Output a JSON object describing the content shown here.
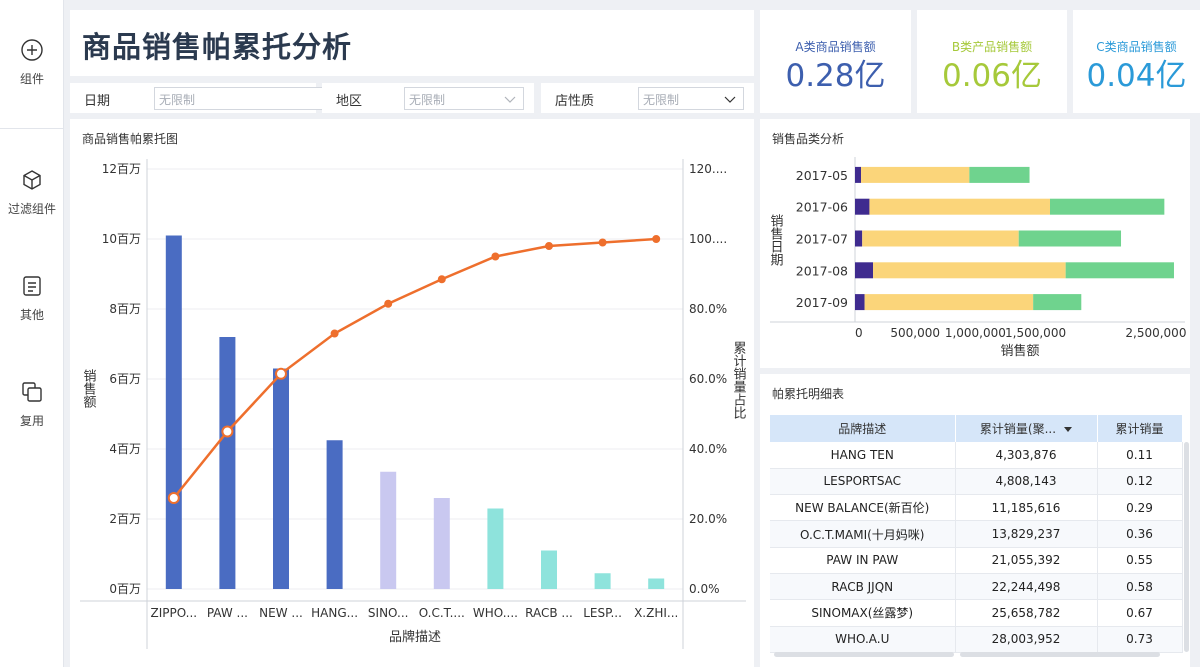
{
  "sidebar": {
    "items": [
      {
        "label": "组件",
        "icon": "plus-circle-icon"
      },
      {
        "label": "过滤组件",
        "icon": "cube-icon"
      },
      {
        "label": "其他",
        "icon": "document-icon"
      },
      {
        "label": "复用",
        "icon": "copy-icon"
      }
    ]
  },
  "header": {
    "title": "商品销售帕累托分析"
  },
  "kpis": [
    {
      "label": "A类商品销售额",
      "value": "0.28亿",
      "color": "#3d5fae"
    },
    {
      "label": "B类产品销售额",
      "value": "0.06亿",
      "color": "#a6c93a"
    },
    {
      "label": "C类商品销售额",
      "value": "0.04亿",
      "color": "#2b9ad8"
    }
  ],
  "filters": [
    {
      "label": "日期",
      "placeholder": "无限制",
      "icon": "calendar-icon"
    },
    {
      "label": "地区",
      "placeholder": "无限制",
      "icon": "chevron-down-icon"
    },
    {
      "label": "店性质",
      "placeholder": "无限制",
      "icon": "chevron-down-icon"
    }
  ],
  "pareto": {
    "title": "商品销售帕累托图",
    "colors": {
      "bar_a": "#4a6cc2",
      "bar_b": "#c9c8f0",
      "bar_c": "#8ee3dc",
      "line": "#ee6f2d"
    }
  },
  "category": {
    "title": "销售品类分析"
  },
  "table": {
    "title": "帕累托明细表",
    "headers": [
      "品牌描述",
      "累计销量(聚...",
      "累计销量"
    ],
    "rows": [
      [
        "HANG TEN",
        "4,303,876",
        "0.11"
      ],
      [
        "LESPORTSAC",
        "4,808,143",
        "0.12"
      ],
      [
        "NEW BALANCE(新百伦)",
        "11,185,616",
        "0.29"
      ],
      [
        "O.C.T.MAMI(十月妈咪)",
        "13,829,237",
        "0.36"
      ],
      [
        "PAW IN PAW",
        "21,055,392",
        "0.55"
      ],
      [
        "RACB JJQN",
        "22,244,498",
        "0.58"
      ],
      [
        "SINOMAX(丝露梦)",
        "25,658,782",
        "0.67"
      ],
      [
        "WHO.A.U",
        "28,003,952",
        "0.73"
      ]
    ]
  },
  "chart_data": [
    {
      "type": "bar",
      "title": "商品销售帕累托图",
      "xlabel": "品牌描述",
      "ylabel": "销售额",
      "y2label": "累计销量占比",
      "categories": [
        "ZIPPO...",
        "PAW ...",
        "NEW ...",
        "HANG...",
        "SINO...",
        "O.C.T....",
        "WHO....",
        "RACB ...",
        "LESP...",
        "X.ZHI..."
      ],
      "y_ticks": [
        "0百万",
        "2百万",
        "4百万",
        "6百万",
        "8百万",
        "10百万",
        "12百万"
      ],
      "y2_ticks": [
        "0.0%",
        "20.0%",
        "40.0%",
        "60.0%",
        "80.0%",
        "100....",
        "120...."
      ],
      "ylim": [
        0,
        12
      ],
      "y2lim": [
        0,
        120
      ],
      "classes": [
        "A",
        "A",
        "A",
        "A",
        "B",
        "B",
        "C",
        "C",
        "C",
        "C"
      ],
      "series": [
        {
          "kind": "bar",
          "values": [
            10.1,
            7.2,
            6.3,
            4.25,
            3.35,
            2.6,
            2.3,
            1.1,
            0.45,
            0.3
          ]
        },
        {
          "kind": "line",
          "values": [
            26,
            45,
            61.5,
            73,
            81.5,
            88.5,
            95,
            98,
            99,
            100
          ]
        }
      ]
    },
    {
      "type": "bar",
      "orientation": "horizontal",
      "stacked": true,
      "title": "销售品类分析",
      "xlabel": "销售额",
      "ylabel": "销售日期",
      "categories": [
        "2017-05",
        "2017-06",
        "2017-07",
        "2017-08",
        "2017-09"
      ],
      "x_ticks": [
        0,
        500000,
        1000000,
        1500000,
        2500000
      ],
      "x_tick_labels": [
        "0",
        "500,000",
        "1,000,000",
        "1,500,000",
        "2,500,000"
      ],
      "xlim": [
        0,
        2700000
      ],
      "series": [
        {
          "color": "#3f2b8f",
          "values": [
            50000,
            120000,
            60000,
            150000,
            80000
          ]
        },
        {
          "color": "#fbd57a",
          "values": [
            900000,
            1500000,
            1300000,
            1600000,
            1400000
          ]
        },
        {
          "color": "#6fd38e",
          "values": [
            500000,
            950000,
            850000,
            900000,
            400000
          ]
        }
      ]
    }
  ]
}
